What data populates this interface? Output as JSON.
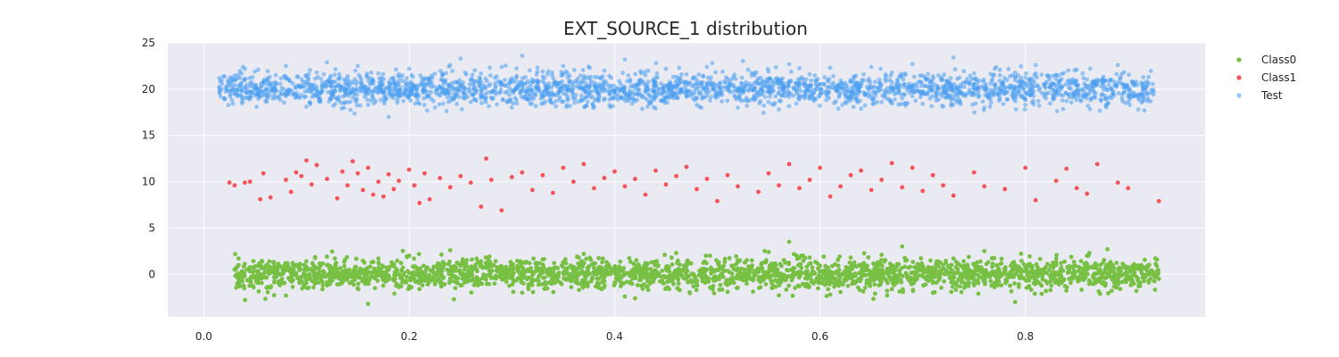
{
  "chart_data": {
    "type": "scatter",
    "title": "EXT_SOURCE_1 distribution",
    "xlabel": "",
    "ylabel": "",
    "xlim": [
      -0.035,
      0.975
    ],
    "ylim": [
      -4.6,
      25.0
    ],
    "xticks": [
      0.0,
      0.2,
      0.4,
      0.6,
      0.8
    ],
    "xtick_labels": [
      "0.0",
      "0.2",
      "0.4",
      "0.6",
      "0.8"
    ],
    "yticks": [
      0,
      5,
      10,
      15,
      20,
      25
    ],
    "ytick_labels": [
      "0",
      "5",
      "10",
      "15",
      "20",
      "25"
    ],
    "grid": true,
    "legend_position": "top-right outside plot",
    "colors": {
      "background": "#eaeaf2",
      "grid": "#ffffff",
      "Class0": "#77c044",
      "Class1": "#f5525a",
      "Test": "#4a9ff0"
    },
    "series": [
      {
        "name": "Class0",
        "center": 0,
        "spread": 1.0,
        "x_range": [
          0.03,
          0.93
        ],
        "points": [
          [
            0.03,
            0.5
          ],
          [
            0.05,
            -0.2
          ],
          [
            0.07,
            0.8
          ],
          [
            0.08,
            -2.3
          ],
          [
            0.09,
            1.0
          ],
          [
            0.1,
            -0.6
          ],
          [
            0.12,
            1.9
          ],
          [
            0.13,
            -1.1
          ],
          [
            0.15,
            0.3
          ],
          [
            0.16,
            -3.2
          ],
          [
            0.17,
            1.7
          ],
          [
            0.18,
            -0.5
          ],
          [
            0.2,
            2.0
          ],
          [
            0.21,
            -1.6
          ],
          [
            0.23,
            0.6
          ],
          [
            0.24,
            2.6
          ],
          [
            0.25,
            -1.2
          ],
          [
            0.27,
            1.4
          ],
          [
            0.28,
            -0.4
          ],
          [
            0.3,
            0.9
          ],
          [
            0.31,
            -2.0
          ],
          [
            0.33,
            1.6
          ],
          [
            0.34,
            -0.7
          ],
          [
            0.36,
            0.2
          ],
          [
            0.37,
            2.2
          ],
          [
            0.39,
            -1.4
          ],
          [
            0.4,
            0.7
          ],
          [
            0.42,
            -2.6
          ],
          [
            0.43,
            1.2
          ],
          [
            0.45,
            -0.3
          ],
          [
            0.46,
            2.3
          ],
          [
            0.48,
            -1.0
          ],
          [
            0.49,
            0.5
          ],
          [
            0.51,
            -1.9
          ],
          [
            0.52,
            1.5
          ],
          [
            0.54,
            -0.6
          ],
          [
            0.55,
            2.4
          ],
          [
            0.57,
            3.5
          ],
          [
            0.58,
            -1.3
          ],
          [
            0.6,
            0.9
          ],
          [
            0.61,
            -2.2
          ],
          [
            0.63,
            1.8
          ],
          [
            0.64,
            -0.5
          ],
          [
            0.66,
            2.1
          ],
          [
            0.67,
            -1.6
          ],
          [
            0.68,
            3.0
          ],
          [
            0.7,
            0.4
          ],
          [
            0.71,
            -2.0
          ],
          [
            0.73,
            1.7
          ],
          [
            0.74,
            -0.9
          ],
          [
            0.76,
            2.5
          ],
          [
            0.77,
            -1.4
          ],
          [
            0.79,
            -3.0
          ],
          [
            0.8,
            0.8
          ],
          [
            0.82,
            -1.8
          ],
          [
            0.83,
            1.3
          ],
          [
            0.85,
            -0.4
          ],
          [
            0.86,
            2.0
          ],
          [
            0.88,
            2.7
          ],
          [
            0.89,
            -1.1
          ],
          [
            0.91,
            0.6
          ],
          [
            0.92,
            -0.7
          ],
          [
            0.93,
            -0.5
          ]
        ]
      },
      {
        "name": "Class1",
        "center": 10,
        "spread": 1.0,
        "x_range": [
          0.025,
          0.93
        ],
        "points": [
          [
            0.025,
            9.9
          ],
          [
            0.03,
            9.6
          ],
          [
            0.04,
            9.9
          ],
          [
            0.045,
            10.0
          ],
          [
            0.055,
            8.1
          ],
          [
            0.058,
            10.9
          ],
          [
            0.065,
            8.3
          ],
          [
            0.08,
            10.2
          ],
          [
            0.085,
            8.9
          ],
          [
            0.09,
            11.0
          ],
          [
            0.095,
            10.6
          ],
          [
            0.1,
            12.3
          ],
          [
            0.105,
            9.7
          ],
          [
            0.11,
            11.8
          ],
          [
            0.12,
            10.3
          ],
          [
            0.13,
            8.2
          ],
          [
            0.135,
            11.1
          ],
          [
            0.14,
            9.6
          ],
          [
            0.145,
            12.2
          ],
          [
            0.15,
            10.9
          ],
          [
            0.155,
            9.1
          ],
          [
            0.16,
            11.5
          ],
          [
            0.165,
            8.6
          ],
          [
            0.17,
            10.0
          ],
          [
            0.175,
            8.4
          ],
          [
            0.18,
            10.8
          ],
          [
            0.185,
            9.2
          ],
          [
            0.19,
            10.1
          ],
          [
            0.2,
            11.3
          ],
          [
            0.205,
            9.6
          ],
          [
            0.21,
            7.7
          ],
          [
            0.215,
            10.9
          ],
          [
            0.22,
            8.1
          ],
          [
            0.23,
            10.4
          ],
          [
            0.24,
            9.4
          ],
          [
            0.25,
            10.6
          ],
          [
            0.26,
            9.9
          ],
          [
            0.27,
            7.3
          ],
          [
            0.275,
            12.5
          ],
          [
            0.28,
            10.2
          ],
          [
            0.29,
            6.9
          ],
          [
            0.3,
            10.5
          ],
          [
            0.31,
            11.0
          ],
          [
            0.32,
            9.1
          ],
          [
            0.33,
            10.7
          ],
          [
            0.34,
            8.8
          ],
          [
            0.35,
            11.5
          ],
          [
            0.36,
            10.0
          ],
          [
            0.37,
            11.9
          ],
          [
            0.38,
            9.3
          ],
          [
            0.39,
            10.4
          ],
          [
            0.4,
            11.1
          ],
          [
            0.41,
            9.5
          ],
          [
            0.42,
            10.3
          ],
          [
            0.43,
            8.6
          ],
          [
            0.44,
            11.2
          ],
          [
            0.45,
            9.7
          ],
          [
            0.46,
            10.6
          ],
          [
            0.47,
            11.6
          ],
          [
            0.48,
            9.2
          ],
          [
            0.49,
            10.3
          ],
          [
            0.5,
            7.9
          ],
          [
            0.51,
            10.7
          ],
          [
            0.52,
            9.5
          ],
          [
            0.54,
            8.9
          ],
          [
            0.55,
            10.9
          ],
          [
            0.56,
            9.6
          ],
          [
            0.57,
            11.9
          ],
          [
            0.58,
            9.3
          ],
          [
            0.59,
            10.2
          ],
          [
            0.6,
            11.5
          ],
          [
            0.61,
            8.4
          ],
          [
            0.62,
            9.5
          ],
          [
            0.63,
            10.7
          ],
          [
            0.64,
            11.2
          ],
          [
            0.65,
            9.1
          ],
          [
            0.66,
            10.2
          ],
          [
            0.67,
            12.0
          ],
          [
            0.68,
            9.4
          ],
          [
            0.69,
            11.5
          ],
          [
            0.7,
            9.0
          ],
          [
            0.71,
            10.7
          ],
          [
            0.72,
            9.6
          ],
          [
            0.73,
            8.5
          ],
          [
            0.75,
            11.0
          ],
          [
            0.76,
            9.5
          ],
          [
            0.78,
            9.2
          ],
          [
            0.8,
            11.5
          ],
          [
            0.81,
            8.0
          ],
          [
            0.83,
            10.1
          ],
          [
            0.84,
            11.4
          ],
          [
            0.85,
            9.3
          ],
          [
            0.86,
            8.7
          ],
          [
            0.87,
            11.9
          ],
          [
            0.89,
            9.9
          ],
          [
            0.9,
            9.3
          ],
          [
            0.93,
            7.9
          ]
        ]
      },
      {
        "name": "Test",
        "center": 20,
        "spread": 1.0,
        "x_range": [
          0.015,
          0.925
        ],
        "points": [
          [
            0.015,
            21.2
          ],
          [
            0.02,
            19.0
          ],
          [
            0.03,
            19.5
          ],
          [
            0.04,
            22.2
          ],
          [
            0.05,
            20.4
          ],
          [
            0.06,
            18.7
          ],
          [
            0.07,
            21.5
          ],
          [
            0.08,
            22.5
          ],
          [
            0.09,
            19.2
          ],
          [
            0.1,
            18.1
          ],
          [
            0.11,
            21.8
          ],
          [
            0.12,
            22.9
          ],
          [
            0.13,
            18.9
          ],
          [
            0.14,
            21.4
          ],
          [
            0.15,
            22.5
          ],
          [
            0.16,
            18.3
          ],
          [
            0.17,
            21.7
          ],
          [
            0.18,
            17.0
          ],
          [
            0.19,
            20.6
          ],
          [
            0.2,
            22.2
          ],
          [
            0.21,
            18.4
          ],
          [
            0.22,
            21.2
          ],
          [
            0.23,
            19.3
          ],
          [
            0.24,
            22.6
          ],
          [
            0.25,
            23.3
          ],
          [
            0.26,
            18.6
          ],
          [
            0.27,
            21.7
          ],
          [
            0.28,
            19.1
          ],
          [
            0.29,
            22.4
          ],
          [
            0.3,
            18.0
          ],
          [
            0.31,
            23.6
          ],
          [
            0.32,
            19.7
          ],
          [
            0.33,
            21.9
          ],
          [
            0.34,
            18.5
          ],
          [
            0.35,
            22.5
          ],
          [
            0.36,
            19.0
          ],
          [
            0.37,
            21.4
          ],
          [
            0.38,
            18.1
          ],
          [
            0.39,
            22.0
          ],
          [
            0.4,
            19.4
          ],
          [
            0.41,
            23.2
          ],
          [
            0.42,
            18.7
          ],
          [
            0.43,
            21.5
          ],
          [
            0.44,
            17.9
          ],
          [
            0.45,
            22.2
          ],
          [
            0.46,
            19.2
          ],
          [
            0.47,
            21.6
          ],
          [
            0.48,
            18.3
          ],
          [
            0.49,
            22.4
          ],
          [
            0.5,
            19.5
          ],
          [
            0.51,
            21.1
          ],
          [
            0.52,
            18.0
          ],
          [
            0.53,
            22.1
          ],
          [
            0.54,
            19.3
          ],
          [
            0.55,
            21.9
          ],
          [
            0.56,
            17.8
          ],
          [
            0.57,
            22.7
          ],
          [
            0.58,
            18.9
          ],
          [
            0.59,
            21.6
          ],
          [
            0.6,
            18.2
          ],
          [
            0.61,
            22.3
          ],
          [
            0.62,
            19.6
          ],
          [
            0.63,
            21.0
          ],
          [
            0.64,
            17.9
          ],
          [
            0.65,
            22.4
          ],
          [
            0.66,
            18.6
          ],
          [
            0.67,
            21.8
          ],
          [
            0.68,
            19.0
          ],
          [
            0.69,
            22.7
          ],
          [
            0.7,
            18.4
          ],
          [
            0.71,
            21.4
          ],
          [
            0.72,
            18.1
          ],
          [
            0.73,
            23.4
          ],
          [
            0.74,
            19.3
          ],
          [
            0.75,
            21.7
          ],
          [
            0.76,
            18.0
          ],
          [
            0.77,
            22.2
          ],
          [
            0.78,
            19.5
          ],
          [
            0.79,
            21.3
          ],
          [
            0.8,
            18.3
          ],
          [
            0.81,
            22.6
          ],
          [
            0.82,
            19.0
          ],
          [
            0.83,
            21.5
          ],
          [
            0.84,
            18.7
          ],
          [
            0.85,
            22.1
          ],
          [
            0.86,
            19.4
          ],
          [
            0.87,
            21.0
          ],
          [
            0.88,
            18.5
          ],
          [
            0.89,
            22.6
          ],
          [
            0.9,
            19.2
          ],
          [
            0.91,
            17.8
          ],
          [
            0.92,
            21.3
          ],
          [
            0.925,
            19.7
          ]
        ]
      }
    ],
    "legend": [
      {
        "label": "Class0",
        "color": "#77c044"
      },
      {
        "label": "Class1",
        "color": "#f5525a"
      },
      {
        "label": "Test",
        "color": "#4a9ff0"
      }
    ]
  }
}
